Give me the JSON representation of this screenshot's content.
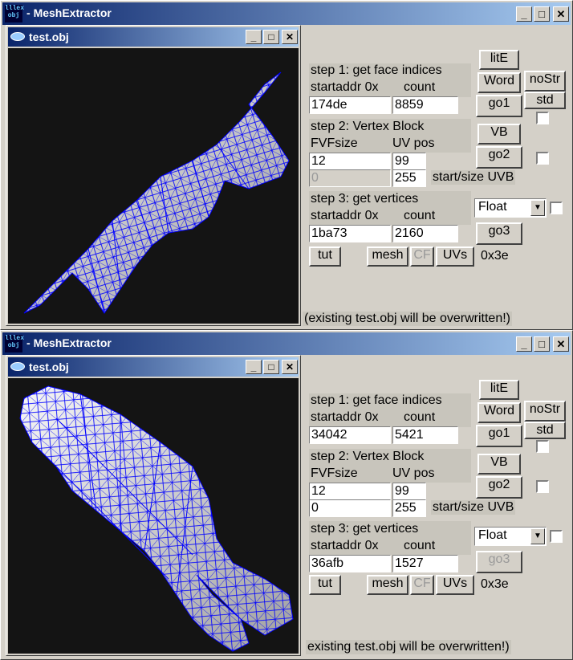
{
  "windows": [
    {
      "title": "MeshExtractor",
      "child_title": "test.obj",
      "step1": {
        "label": "step 1: get face indices",
        "addr_label": "startaddr 0x",
        "count_label": "count",
        "addr": "174de",
        "count": "8859"
      },
      "step2": {
        "label": "step 2: Vertex Block",
        "fvf_label": "FVFsize",
        "uv_label": "UV pos",
        "fvf": "12",
        "uvpos": "99",
        "start": "0",
        "size": "255",
        "start_size_label": "start/size UVB"
      },
      "step3": {
        "label": "step 3: get vertices",
        "addr_label": "startaddr 0x",
        "count_label": "count",
        "addr": "1ba73",
        "count": "2160"
      },
      "buttons": {
        "lite": "litE",
        "word": "Word",
        "nostr": "noStr",
        "std": "std",
        "go1": "go1",
        "vb": "VB",
        "go2": "go2",
        "go3": "go3",
        "tut": "tut",
        "mesh": "mesh",
        "cf": "CF",
        "uvs": "UVs"
      },
      "float_select": "Float",
      "hex_value": "0x3e",
      "status": "(existing test.obj will be overwritten!)"
    },
    {
      "title": "MeshExtractor",
      "child_title": "test.obj",
      "step1": {
        "label": "step 1: get face indices",
        "addr_label": "startaddr 0x",
        "count_label": "count",
        "addr": "34042",
        "count": "5421"
      },
      "step2": {
        "label": "step 2: Vertex Block",
        "fvf_label": "FVFsize",
        "uv_label": "UV pos",
        "fvf": "12",
        "uvpos": "99",
        "start": "0",
        "size": "255",
        "start_size_label": "start/size UVB"
      },
      "step3": {
        "label": "step 3: get vertices",
        "addr_label": "startaddr 0x",
        "count_label": "count",
        "addr": "36afb",
        "count": "1527"
      },
      "buttons": {
        "lite": "litE",
        "word": "Word",
        "nostr": "noStr",
        "std": "std",
        "go1": "go1",
        "vb": "VB",
        "go2": "go2",
        "go3": "go3",
        "tut": "tut",
        "mesh": "mesh",
        "cf": "CF",
        "uvs": "UVs"
      },
      "float_select": "Float",
      "hex_value": "0x3e",
      "status": "existing test.obj will be overwritten!)"
    }
  ],
  "icons": {
    "app": "app-icon",
    "child": "obj-file-icon",
    "min": "minimize-icon",
    "max": "maximize-icon",
    "close": "close-icon",
    "dropdown": "chevron-down-icon"
  },
  "colors": {
    "titlebar": "#0a246a",
    "mesh_wire": "#0000ff",
    "viewport_bg": "#141414",
    "face": "#e6e6e6"
  }
}
